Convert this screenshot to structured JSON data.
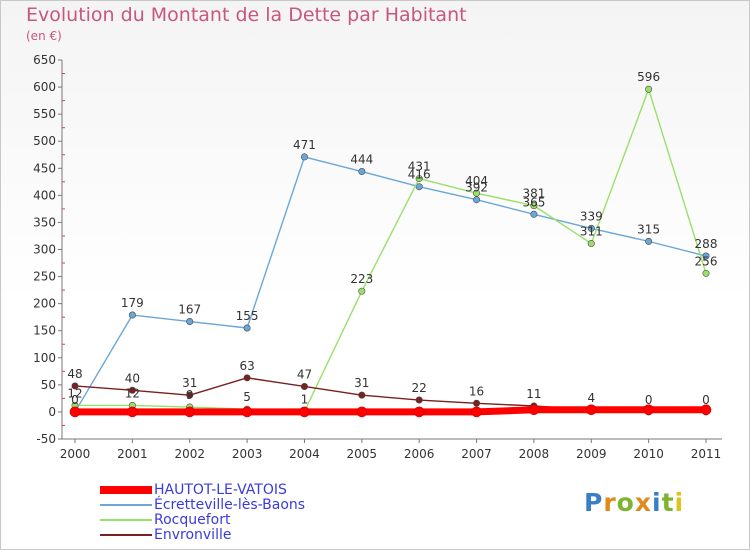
{
  "title": "Evolution du Montant de la Dette par Habitant",
  "unit": "(en €)",
  "logo": {
    "text": "Proxiti",
    "colors": [
      "#3a7fc4",
      "#e08a1e",
      "#7db32f",
      "#e08a1e",
      "#3a7fc4",
      "#7db32f",
      "#e0c21e"
    ]
  },
  "chart_data": {
    "type": "line",
    "x": [
      2000,
      2001,
      2002,
      2003,
      2004,
      2005,
      2006,
      2007,
      2008,
      2009,
      2010,
      2011
    ],
    "ylim": [
      -50,
      650
    ],
    "yticks": [
      -50,
      0,
      50,
      100,
      150,
      200,
      250,
      300,
      350,
      400,
      450,
      500,
      550,
      600,
      650
    ],
    "grid": false,
    "legend_position": "bottom-left",
    "series": [
      {
        "name": "HAUTOT-LE-VATOIS",
        "color": "#ff0000",
        "values": [
          0,
          0,
          0,
          0,
          0,
          0,
          0,
          0,
          4,
          4,
          4,
          4
        ],
        "labels": [],
        "style": "thick"
      },
      {
        "name": "Écretteville-lès-Baons",
        "color": "#6aa7d8",
        "values": [
          0,
          179,
          167,
          155,
          471,
          444,
          416,
          392,
          365,
          339,
          315,
          288
        ],
        "labels": [
          "0",
          "179",
          "167",
          "155",
          "471",
          "444",
          "416",
          "392",
          "365",
          "339",
          "315",
          "288"
        ]
      },
      {
        "name": "Rocquefort",
        "color": "#99e069",
        "values": [
          12,
          12,
          9,
          5,
          1,
          223,
          431,
          404,
          381,
          311,
          596,
          256
        ],
        "labels": [
          "12",
          "12",
          "9",
          "5",
          "1",
          "223",
          "431",
          "404",
          "381",
          "311",
          "596",
          "256"
        ]
      },
      {
        "name": "Envronville",
        "color": "#7a2020",
        "values": [
          48,
          40,
          31,
          63,
          47,
          31,
          22,
          16,
          11,
          4,
          0,
          0
        ],
        "labels": [
          "48",
          "40",
          "31",
          "63",
          "47",
          "31",
          "22",
          "16",
          "11",
          "4",
          "0",
          "0"
        ]
      }
    ]
  }
}
